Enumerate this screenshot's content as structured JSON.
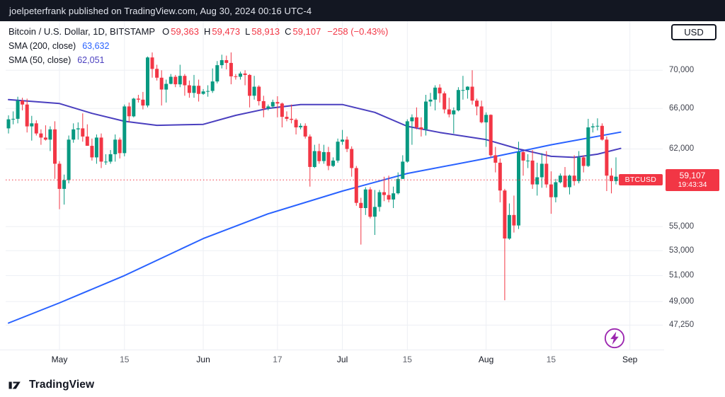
{
  "attribution": {
    "text": "joelpeterfrank published on TradingView.com, Aug 30, 2024 00:16 UTC-4"
  },
  "legend": {
    "title": "Bitcoin / U.S. Dollar, 1D, BITSTAMP",
    "ohlc": {
      "o_label": "O",
      "o": "59,363",
      "h_label": "H",
      "h": "59,473",
      "l_label": "L",
      "l": "58,913",
      "c_label": "C",
      "c": "59,107",
      "change": "−258 (−0.43%)"
    },
    "indicators": [
      {
        "label": "SMA (200, close)",
        "value": "63,632",
        "color": "#2962ff"
      },
      {
        "label": "SMA (50, close)",
        "value": "62,051",
        "color": "#4a3fbf"
      }
    ]
  },
  "price_axis": {
    "currency": "USD",
    "labels": [
      {
        "text": "70,000",
        "price": 70000
      },
      {
        "text": "66,000",
        "price": 66000
      },
      {
        "text": "62,000",
        "price": 62000
      },
      {
        "text": "55,000",
        "price": 55000
      },
      {
        "text": "53,000",
        "price": 53000
      },
      {
        "text": "51,000",
        "price": 51000
      },
      {
        "text": "49,000",
        "price": 49000
      },
      {
        "text": "47,250",
        "price": 47250
      }
    ],
    "last": {
      "symbol": "BTCUSD",
      "price": "59,107",
      "countdown": "19:43:34"
    }
  },
  "time_axis": {
    "ticks": [
      {
        "label": "May",
        "day": 11,
        "major": true
      },
      {
        "label": "15",
        "day": 25,
        "major": false
      },
      {
        "label": "Jun",
        "day": 42,
        "major": true
      },
      {
        "label": "17",
        "day": 58,
        "major": false
      },
      {
        "label": "Jul",
        "day": 72,
        "major": true
      },
      {
        "label": "15",
        "day": 86,
        "major": false
      },
      {
        "label": "Aug",
        "day": 103,
        "major": true
      },
      {
        "label": "15",
        "day": 117,
        "major": false
      },
      {
        "label": "Sep",
        "day": 134,
        "major": true
      }
    ]
  },
  "footer": {
    "brand": "TradingView"
  },
  "watermark": {
    "name": "lightning-boost",
    "color": "#9c27b0"
  },
  "chart_data": {
    "type": "candlestick",
    "title": "Bitcoin / U.S. Dollar",
    "ticker": "BTCUSD",
    "exchange": "BITSTAMP",
    "interval": "1D",
    "yscale": "log",
    "ylim": [
      45500,
      75500
    ],
    "start_date": "2024-04-20",
    "last_price": 59107,
    "change": -258,
    "change_pct": -0.43,
    "up_color": "#089981",
    "down_color": "#f23645",
    "open": [
      64000,
      64900,
      64950,
      66800,
      66400,
      64200,
      64500,
      63500,
      63100,
      62900,
      63900,
      60600,
      58300,
      59100,
      62900,
      63900,
      64000,
      63200,
      62300,
      61200,
      63100,
      60800,
      60800,
      61500,
      62900,
      61600,
      66200,
      65200,
      67000,
      66900,
      66300,
      71400,
      70150,
      69200,
      67950,
      68550,
      69300,
      68500,
      69400,
      68400,
      67600,
      68350,
      67500,
      67750,
      67800,
      68800,
      70550,
      71100,
      70800,
      69350,
      69300,
      69650,
      69500,
      67300,
      68250,
      66750,
      66000,
      66200,
      66650,
      66500,
      65150,
      64950,
      64850,
      64100,
      64250,
      63200,
      60300,
      61800,
      60850,
      61700,
      60400,
      60900,
      62700,
      62900,
      62000,
      60200,
      57050,
      56600,
      58250,
      55850,
      56700,
      58000,
      57750,
      57350,
      57900,
      59200,
      60800,
      64700,
      65100,
      64100,
      63900,
      66700,
      66900,
      68150,
      67550,
      65900,
      65400,
      65800,
      67900,
      67900,
      68250,
      66800,
      66200,
      64600,
      65350,
      61400,
      60700,
      58150,
      54000,
      56000,
      55100,
      61700,
      60900,
      60900,
      58700,
      59350,
      60600,
      58700,
      57550,
      58900,
      59500,
      58450,
      59500,
      59000,
      61200,
      60400,
      64100,
      64200,
      64250,
      62900,
      59500,
      59000,
      59363
    ],
    "high": [
      65300,
      65700,
      67200,
      67100,
      67000,
      65250,
      64800,
      63900,
      64300,
      64200,
      64700,
      60850,
      59600,
      63300,
      64500,
      64600,
      65500,
      64400,
      63000,
      63400,
      63500,
      61500,
      61900,
      63400,
      63100,
      66400,
      66600,
      67100,
      67400,
      67700,
      71500,
      71950,
      70600,
      70000,
      69000,
      69600,
      69500,
      70600,
      69600,
      68900,
      69500,
      69000,
      68000,
      68400,
      70200,
      71000,
      71700,
      71600,
      71950,
      69600,
      69850,
      70000,
      69600,
      69400,
      68400,
      67300,
      66400,
      66900,
      67250,
      66600,
      65700,
      66400,
      65000,
      64500,
      64500,
      63400,
      62400,
      62500,
      62400,
      62200,
      61200,
      63000,
      63850,
      63200,
      62250,
      60400,
      57500,
      58450,
      58450,
      58200,
      58200,
      59400,
      59500,
      58500,
      59800,
      61400,
      64900,
      65400,
      66100,
      65100,
      67400,
      67600,
      68400,
      68500,
      67750,
      67100,
      66100,
      68200,
      69400,
      68300,
      70000,
      67000,
      66800,
      65600,
      65400,
      62200,
      61100,
      58300,
      57000,
      57700,
      62700,
      61800,
      61500,
      61900,
      60700,
      61600,
      61800,
      59900,
      59200,
      59700,
      60300,
      59600,
      61400,
      61800,
      61400,
      64950,
      64500,
      65000,
      64500,
      63200,
      60200,
      61200,
      59473
    ],
    "low": [
      63500,
      64400,
      64500,
      65800,
      63600,
      62800,
      63300,
      62400,
      62800,
      61800,
      59200,
      56500,
      56900,
      58800,
      62600,
      62900,
      62700,
      62300,
      60900,
      60600,
      60200,
      60500,
      60600,
      60800,
      61100,
      61300,
      64600,
      65100,
      66600,
      65900,
      66100,
      69200,
      68900,
      66300,
      66600,
      68500,
      68200,
      68200,
      67300,
      67100,
      67100,
      66700,
      67400,
      67200,
      67600,
      68600,
      70200,
      70100,
      68500,
      69000,
      69000,
      68400,
      66100,
      66900,
      66300,
      65100,
      65800,
      66000,
      65100,
      64100,
      64700,
      64500,
      63400,
      63900,
      63000,
      58500,
      60200,
      60600,
      60600,
      60000,
      60300,
      60700,
      62400,
      61700,
      59400,
      56800,
      53500,
      56000,
      55700,
      54300,
      56300,
      57200,
      57100,
      56600,
      57800,
      59200,
      60700,
      62400,
      63900,
      63200,
      63300,
      66200,
      65800,
      66600,
      65500,
      65100,
      63500,
      65700,
      66900,
      67000,
      66400,
      65300,
      64500,
      62200,
      61200,
      59800,
      57100,
      49100,
      53900,
      54500,
      54800,
      59500,
      60200,
      58300,
      57700,
      58400,
      58400,
      56100,
      57100,
      58800,
      58400,
      57800,
      58600,
      58800,
      59800,
      60300,
      63600,
      63800,
      62800,
      58100,
      57900,
      58700,
      58913
    ],
    "close": [
      64900,
      64950,
      66800,
      66400,
      64200,
      64500,
      63500,
      63100,
      62900,
      63900,
      60600,
      58300,
      59100,
      62900,
      63900,
      64000,
      63200,
      62300,
      61200,
      63100,
      60800,
      60800,
      61500,
      62900,
      61600,
      66200,
      65200,
      67000,
      66900,
      66300,
      71400,
      70150,
      69200,
      67950,
      68550,
      69300,
      68500,
      69400,
      68400,
      67600,
      68350,
      67500,
      67750,
      67800,
      68800,
      70550,
      71100,
      70800,
      69350,
      69300,
      69650,
      69500,
      67300,
      68250,
      66750,
      66000,
      66200,
      66650,
      66500,
      65150,
      64950,
      64850,
      64100,
      64250,
      63200,
      60300,
      61800,
      60850,
      61700,
      60400,
      60900,
      62700,
      62900,
      62000,
      60200,
      57050,
      56600,
      58250,
      55850,
      56700,
      58000,
      57750,
      57350,
      57900,
      59200,
      60800,
      64700,
      65100,
      64100,
      63900,
      66700,
      66900,
      68150,
      67550,
      65900,
      65400,
      65800,
      67900,
      67900,
      68250,
      66800,
      66200,
      64600,
      65350,
      61400,
      60700,
      58150,
      54000,
      56000,
      55100,
      61700,
      60900,
      60900,
      58700,
      59350,
      60600,
      58700,
      57550,
      58900,
      59500,
      58450,
      59500,
      59000,
      61200,
      60400,
      64100,
      64200,
      64250,
      62900,
      59500,
      59000,
      59400,
      59107
    ],
    "series": [
      {
        "name": "SMA 200",
        "color": "#2962ff",
        "points": [
          [
            0,
            47400
          ],
          [
            11,
            48900
          ],
          [
            25,
            51000
          ],
          [
            42,
            54000
          ],
          [
            56,
            56100
          ],
          [
            72,
            58100
          ],
          [
            86,
            59700
          ],
          [
            103,
            61100
          ],
          [
            117,
            62400
          ],
          [
            132,
            63632
          ]
        ]
      },
      {
        "name": "SMA 50",
        "color": "#4a3fbf",
        "points": [
          [
            0,
            66900
          ],
          [
            11,
            66500
          ],
          [
            18,
            65500
          ],
          [
            25,
            64700
          ],
          [
            32,
            64300
          ],
          [
            42,
            64400
          ],
          [
            49,
            65300
          ],
          [
            56,
            66000
          ],
          [
            63,
            66400
          ],
          [
            72,
            66400
          ],
          [
            79,
            65600
          ],
          [
            86,
            64200
          ],
          [
            93,
            63600
          ],
          [
            103,
            62900
          ],
          [
            110,
            62000
          ],
          [
            117,
            61300
          ],
          [
            122,
            61200
          ],
          [
            127,
            61500
          ],
          [
            132,
            62051
          ]
        ]
      }
    ]
  }
}
